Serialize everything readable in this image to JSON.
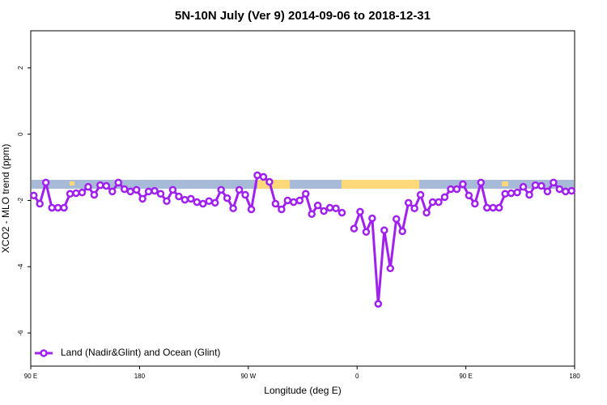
{
  "chart_data": {
    "type": "line",
    "title": "5N-10N July (Ver 9)   2014-09-06 to 2018-12-31",
    "x_label": "Longitude (deg E)",
    "y_label": "XCO2 - MLO trend (ppm)",
    "x": [
      92.5,
      97.5,
      102.5,
      107.5,
      112.5,
      117.5,
      122.5,
      127.5,
      132.5,
      137.5,
      142.5,
      147.5,
      152.5,
      157.5,
      162.5,
      167.5,
      172.5,
      177.5,
      182.5,
      187.5,
      192.5,
      197.5,
      202.5,
      207.5,
      212.5,
      217.5,
      222.5,
      227.5,
      232.5,
      237.5,
      242.5,
      247.5,
      252.5,
      257.5,
      262.5,
      267.5,
      272.5,
      277.5,
      282.5,
      287.5,
      292.5,
      297.5,
      302.5,
      307.5,
      312.5,
      317.5,
      322.5,
      327.5,
      332.5,
      337.5,
      342.5,
      347.5,
      352.5,
      357.5,
      362.5,
      367.5,
      372.5,
      377.5,
      382.5,
      387.5,
      392.5,
      397.5,
      402.5,
      407.5,
      412.5,
      417.5,
      422.5,
      427.5,
      432.5,
      437.5,
      442.5,
      447.5,
      452.5,
      457.5,
      462.5,
      467.5,
      472.5,
      477.5,
      482.5,
      487.5,
      492.5,
      497.5,
      502.5,
      507.5,
      512.5,
      517.5,
      522.5,
      527.5,
      532.5,
      537.5
    ],
    "series": [
      {
        "name": "Land (Nadir&Glint) and Ocean (Glint)",
        "color": "#a020f0",
        "values": [
          -1.85,
          -2.1,
          -1.46,
          -2.22,
          -2.22,
          -2.22,
          -1.8,
          -1.78,
          -1.76,
          -1.59,
          -1.83,
          -1.54,
          -1.56,
          -1.73,
          -1.46,
          -1.66,
          -1.73,
          -1.68,
          -1.95,
          -1.73,
          -1.71,
          -1.8,
          -2.02,
          -1.68,
          -1.88,
          -1.98,
          -1.95,
          -2.05,
          -2.1,
          -2.02,
          -2.07,
          -1.68,
          -1.93,
          -2.24,
          -1.68,
          -1.83,
          -2.27,
          -1.24,
          -1.29,
          -1.44,
          -2.1,
          -2.27,
          -2.0,
          -2.05,
          -2.0,
          -1.8,
          -2.41,
          -2.15,
          -2.32,
          -2.22,
          -2.24,
          -2.37,
          null,
          -2.85,
          -2.34,
          -2.95,
          -2.54,
          -5.12,
          -2.9,
          -4.05,
          -2.56,
          -2.93,
          -2.07,
          -2.24,
          -1.83,
          -2.37,
          -2.05,
          -2.05,
          -1.9,
          -1.66,
          -1.66,
          -1.51,
          -1.85,
          -2.1,
          -1.46,
          -2.22,
          -2.22,
          -2.22,
          -1.8,
          -1.78,
          -1.76,
          -1.59,
          -1.83,
          -1.54,
          -1.56,
          -1.73,
          -1.46,
          -1.66,
          -1.73,
          -1.71
        ]
      }
    ],
    "xlim": [
      90,
      540
    ],
    "xticks": [
      {
        "value": 90,
        "label": "90 E"
      },
      {
        "value": 180,
        "label": "180"
      },
      {
        "value": 270,
        "label": "90 W"
      },
      {
        "value": 360,
        "label": "0"
      },
      {
        "value": 450,
        "label": "90 E"
      },
      {
        "value": 540,
        "label": "180"
      }
    ],
    "ylim": [
      -7,
      3.12
    ],
    "yticks": [
      -6,
      -4,
      -2,
      0,
      2
    ],
    "legend": "bottomleft"
  }
}
